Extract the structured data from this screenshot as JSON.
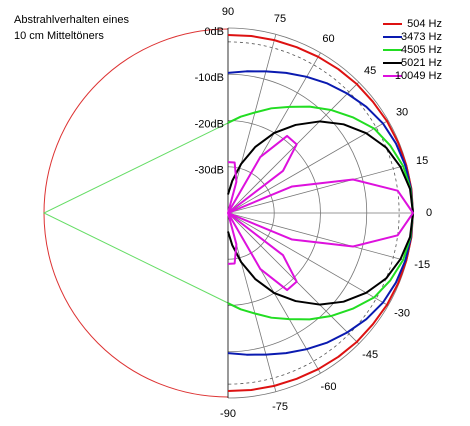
{
  "chart_data": {
    "type": "polar",
    "title": [
      "Abstrahlverhalten eines",
      "10 cm Mitteltöners"
    ],
    "theta": [
      -90,
      -82.5,
      -75,
      -67.5,
      -60,
      -52.5,
      -45,
      -37.5,
      -30,
      -22.5,
      -15,
      -7.5,
      0,
      7.5,
      15,
      22.5,
      30,
      37.5,
      45,
      52.5,
      60,
      67.5,
      75,
      82.5,
      90
    ],
    "thetaticks": [
      90,
      75,
      60,
      45,
      30,
      15,
      0,
      -15,
      -30,
      -45,
      -60,
      -75,
      -90
    ],
    "rlim": [
      -40,
      0
    ],
    "rticks": [
      {
        "value": 0,
        "label": "0dB"
      },
      {
        "value": -10,
        "label": "-10dB"
      },
      {
        "value": -20,
        "label": "-20dB"
      },
      {
        "value": -30,
        "label": "-30dB"
      }
    ],
    "reference_level": -3,
    "legend": "upper right",
    "series": [
      {
        "name": "504 Hz",
        "color": "#dd1111",
        "values": [
          -1.5,
          -1.4,
          -1.3,
          -1.2,
          -1,
          -0.8,
          -0.6,
          -0.5,
          -0.3,
          -0.2,
          -0.1,
          0,
          0,
          0,
          -0.1,
          -0.2,
          -0.3,
          -0.5,
          -0.6,
          -0.8,
          -1,
          -1.2,
          -1.3,
          -1.4,
          -1.5
        ]
      },
      {
        "name": "3473 Hz",
        "color": "#0a1ab0",
        "values": [
          -9.7,
          -9.1,
          -8.3,
          -7.2,
          -6,
          -4.7,
          -3.5,
          -2.3,
          -1.3,
          -0.7,
          -0.3,
          -0.1,
          0,
          -0.1,
          -0.3,
          -0.7,
          -1.3,
          -2.3,
          -3.5,
          -4.7,
          -6,
          -7.2,
          -8.3,
          -9.1,
          -9.7
        ]
      },
      {
        "name": "4505 Hz",
        "color": "#22dd22",
        "values": [
          -20.5,
          -19,
          -17.5,
          -15.5,
          -13.5,
          -11,
          -8.5,
          -6,
          -3.5,
          -2,
          -0.8,
          -0.2,
          0,
          -0.2,
          -0.8,
          -2,
          -3.5,
          -6,
          -8.5,
          -11,
          -13.5,
          -15.5,
          -17.5,
          -19,
          -20.5
        ]
      },
      {
        "name": "5021 Hz",
        "color": "#000000",
        "values": [
          -36,
          -33,
          -29,
          -24.5,
          -20,
          -16,
          -12,
          -8.5,
          -5.5,
          -3,
          -1.4,
          -0.3,
          0,
          -0.3,
          -1.4,
          -3,
          -5.5,
          -8.5,
          -12,
          -16,
          -20,
          -24.5,
          -29,
          -33,
          -36
        ]
      },
      {
        "name": "10049 Hz",
        "color": "#dd11dd",
        "values": [
          -29,
          -29,
          -33,
          -40,
          -26,
          -19,
          -19,
          -25,
          -40,
          -25,
          -12,
          -3,
          0,
          -3,
          -12,
          -25,
          -40,
          -25,
          -19,
          -19,
          -26,
          -40,
          -33,
          -29,
          -29
        ]
      }
    ]
  }
}
